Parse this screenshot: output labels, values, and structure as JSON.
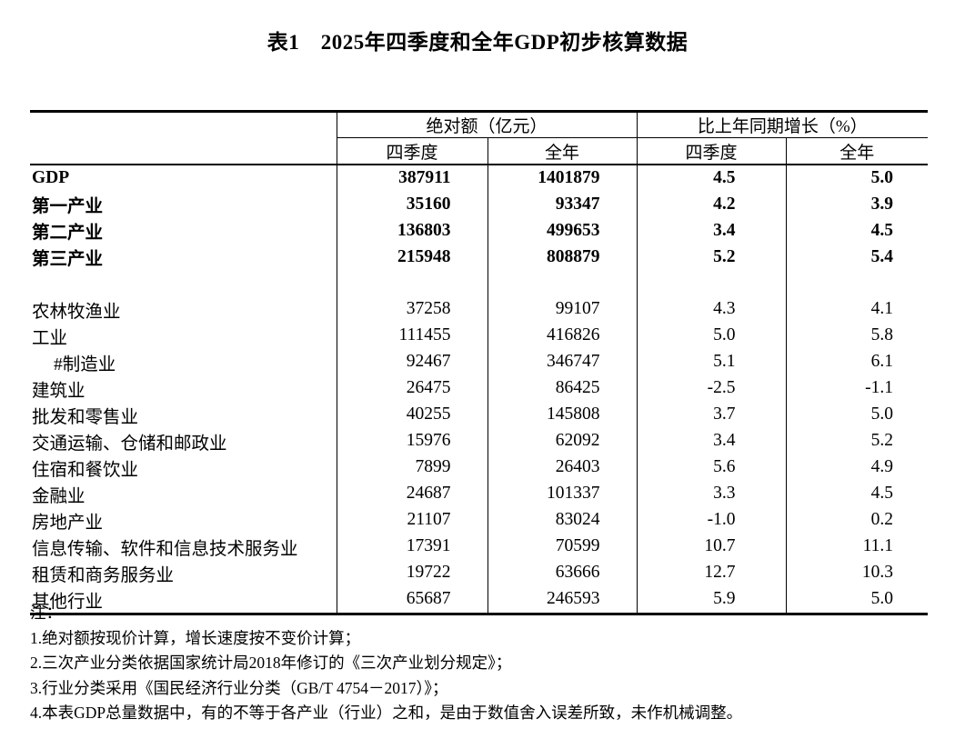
{
  "title": "表1　2025年四季度和全年GDP初步核算数据",
  "table": {
    "col_groups": [
      {
        "label": "绝对额（亿元）"
      },
      {
        "label": "比上年同期增长（%）"
      }
    ],
    "sub_headers": [
      "四季度",
      "全年",
      "四季度",
      "全年"
    ],
    "rows": [
      {
        "label": "GDP",
        "bold": true,
        "values": [
          "387911",
          "1401879",
          "4.5",
          "5.0"
        ]
      },
      {
        "label": "第一产业",
        "bold": true,
        "values": [
          "35160",
          "93347",
          "4.2",
          "3.9"
        ]
      },
      {
        "label": "第二产业",
        "bold": true,
        "values": [
          "136803",
          "499653",
          "3.4",
          "4.5"
        ]
      },
      {
        "label": "第三产业",
        "bold": true,
        "values": [
          "215948",
          "808879",
          "5.2",
          "5.4"
        ]
      },
      {
        "blank": true
      },
      {
        "label": "农林牧渔业",
        "values": [
          "37258",
          "99107",
          "4.3",
          "4.1"
        ]
      },
      {
        "label": "工业",
        "values": [
          "111455",
          "416826",
          "5.0",
          "5.8"
        ]
      },
      {
        "label": "#制造业",
        "indent": true,
        "values": [
          "92467",
          "346747",
          "5.1",
          "6.1"
        ]
      },
      {
        "label": "建筑业",
        "values": [
          "26475",
          "86425",
          "-2.5",
          "-1.1"
        ]
      },
      {
        "label": "批发和零售业",
        "values": [
          "40255",
          "145808",
          "3.7",
          "5.0"
        ]
      },
      {
        "label": "交通运输、仓储和邮政业",
        "values": [
          "15976",
          "62092",
          "3.4",
          "5.2"
        ]
      },
      {
        "label": "住宿和餐饮业",
        "values": [
          "7899",
          "26403",
          "5.6",
          "4.9"
        ]
      },
      {
        "label": "金融业",
        "values": [
          "24687",
          "101337",
          "3.3",
          "4.5"
        ]
      },
      {
        "label": "房地产业",
        "values": [
          "21107",
          "83024",
          "-1.0",
          "0.2"
        ]
      },
      {
        "label": "信息传输、软件和信息技术服务业",
        "values": [
          "17391",
          "70599",
          "10.7",
          "11.1"
        ]
      },
      {
        "label": "租赁和商务服务业",
        "values": [
          "19722",
          "63666",
          "12.7",
          "10.3"
        ]
      },
      {
        "label": "其他行业",
        "values": [
          "65687",
          "246593",
          "5.9",
          "5.0"
        ]
      }
    ]
  },
  "notes": {
    "label": "注：",
    "items": [
      "1.绝对额按现价计算，增长速度按不变价计算；",
      "2.三次产业分类依据国家统计局2018年修订的《三次产业划分规定》；",
      "3.行业分类采用《国民经济行业分类（GB/T 4754－2017）》；",
      "4.本表GDP总量数据中，有的不等于各产业（行业）之和，是由于数值舍入误差所致，未作机械调整。"
    ]
  },
  "colors": {
    "text": "#000000",
    "background": "#ffffff",
    "border": "#000000"
  }
}
